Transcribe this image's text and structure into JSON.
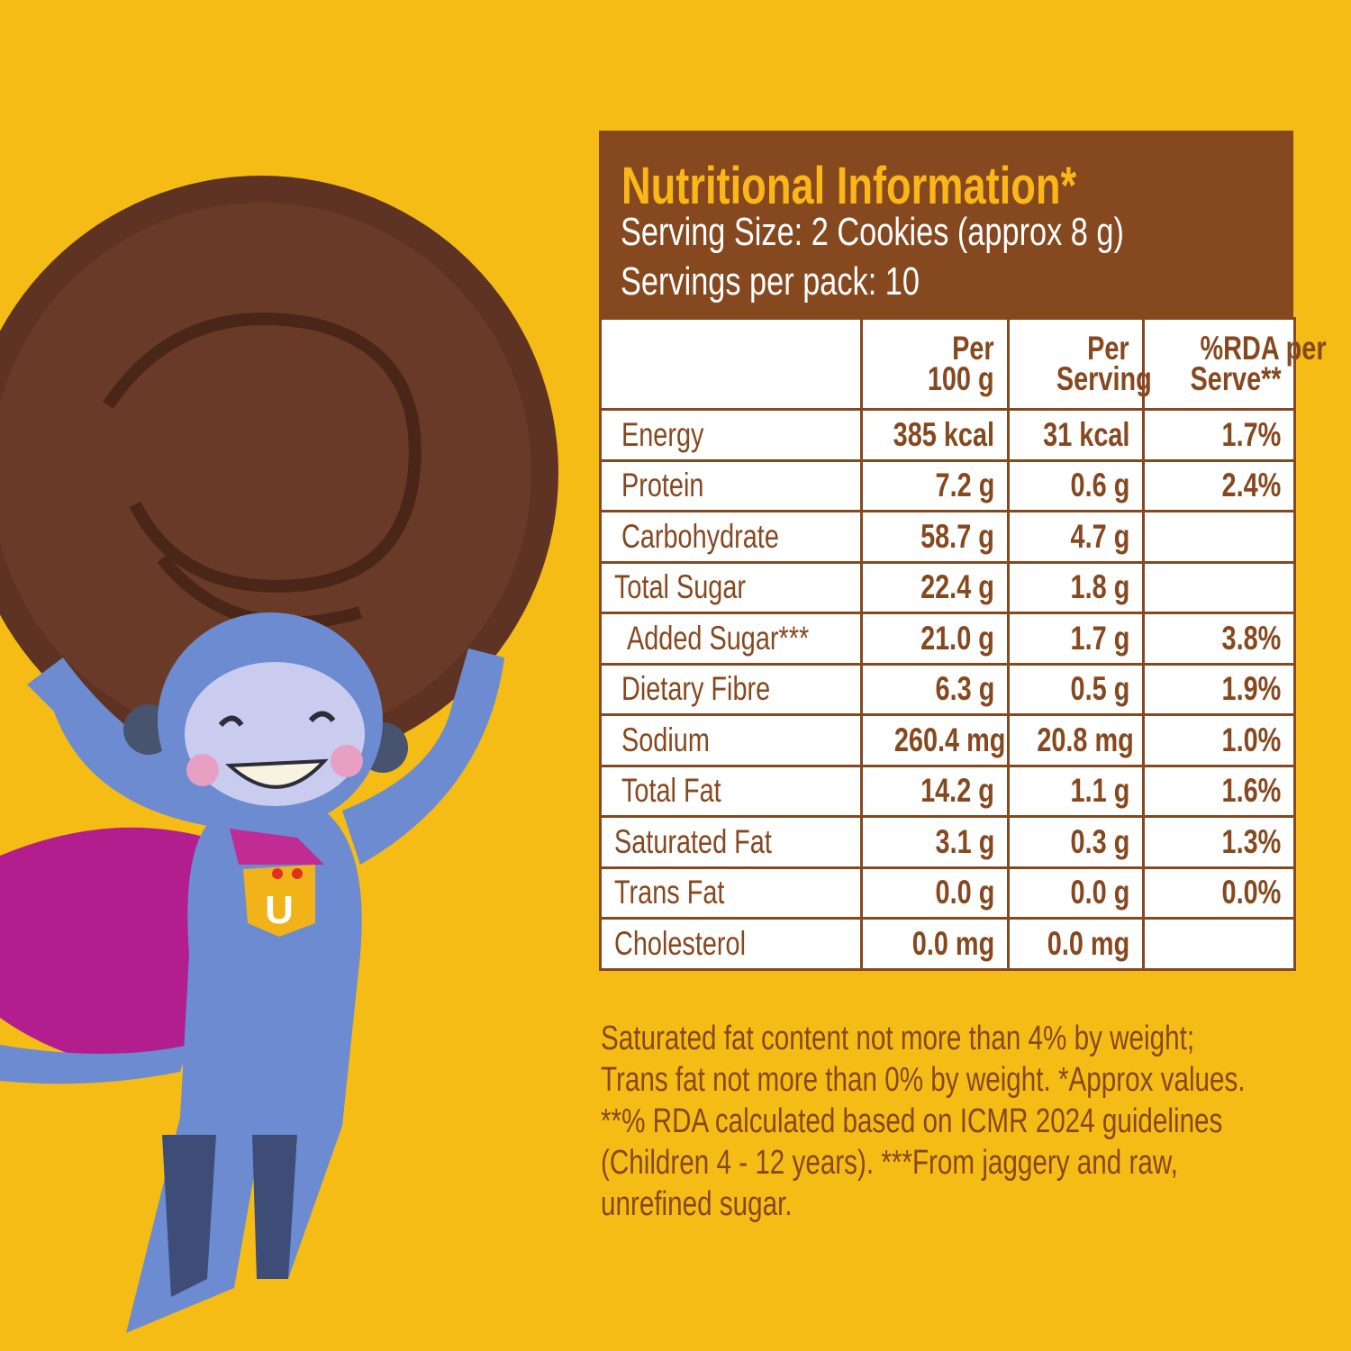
{
  "colors": {
    "background": "#F6BC16",
    "brown": "#86481F",
    "title": "#FBB717"
  },
  "header": {
    "title": "Nutritional Information*",
    "serving_size": "Serving Size: 2 Cookies (approx 8 g)",
    "servings_per_pack": "Servings per pack: 10"
  },
  "table": {
    "columns": [
      "",
      "Per 100 g",
      "Per Serving",
      "%RDA per Serve**"
    ],
    "col_lines": [
      [
        "",
        ""
      ],
      [
        "Per",
        "100 g"
      ],
      [
        "Per",
        "Serving"
      ],
      [
        "%RDA per",
        "Serve**"
      ]
    ],
    "rows": [
      {
        "name": "Energy",
        "per100": "385 kcal",
        "serving": "31 kcal",
        "rda": "1.7%",
        "indent": 0
      },
      {
        "name": "Protein",
        "per100": "7.2 g",
        "serving": "0.6 g",
        "rda": "2.4%",
        "indent": 0
      },
      {
        "name": "Carbohydrate",
        "per100": "58.7 g",
        "serving": "4.7 g",
        "rda": "",
        "indent": 0
      },
      {
        "name": "Total Sugar",
        "per100": "22.4 g",
        "serving": "1.8 g",
        "rda": "",
        "indent": 1
      },
      {
        "name": "Added Sugar***",
        "per100": "21.0 g",
        "serving": "1.7 g",
        "rda": "3.8%",
        "indent": 2
      },
      {
        "name": "Dietary Fibre",
        "per100": "6.3 g",
        "serving": "0.5 g",
        "rda": "1.9%",
        "indent": 0
      },
      {
        "name": "Sodium",
        "per100": "260.4 mg",
        "serving": "20.8 mg",
        "rda": "1.0%",
        "indent": 0
      },
      {
        "name": "Total Fat",
        "per100": "14.2 g",
        "serving": "1.1 g",
        "rda": "1.6%",
        "indent": 0
      },
      {
        "name": "Saturated Fat",
        "per100": "3.1 g",
        "serving": "0.3 g",
        "rda": "1.3%",
        "indent": 1
      },
      {
        "name": "Trans Fat",
        "per100": "0.0 g",
        "serving": "0.0 g",
        "rda": "0.0%",
        "indent": 1
      },
      {
        "name": "Cholesterol",
        "per100": "0.0 mg",
        "serving": "0.0 mg",
        "rda": "",
        "indent": 1
      }
    ]
  },
  "notes": [
    "Saturated fat content not more than 4% by weight;",
    "Trans fat not more than 0% by weight. *Approx values.",
    "**% RDA calculated based on ICMR 2024 guidelines",
    "(Children 4 - 12 years). ***From jaggery and raw,",
    "unrefined sugar."
  ],
  "illustration": {
    "badge_letter": "U",
    "icons": [
      "cookie-image",
      "monkey-superhero-illustration"
    ]
  }
}
